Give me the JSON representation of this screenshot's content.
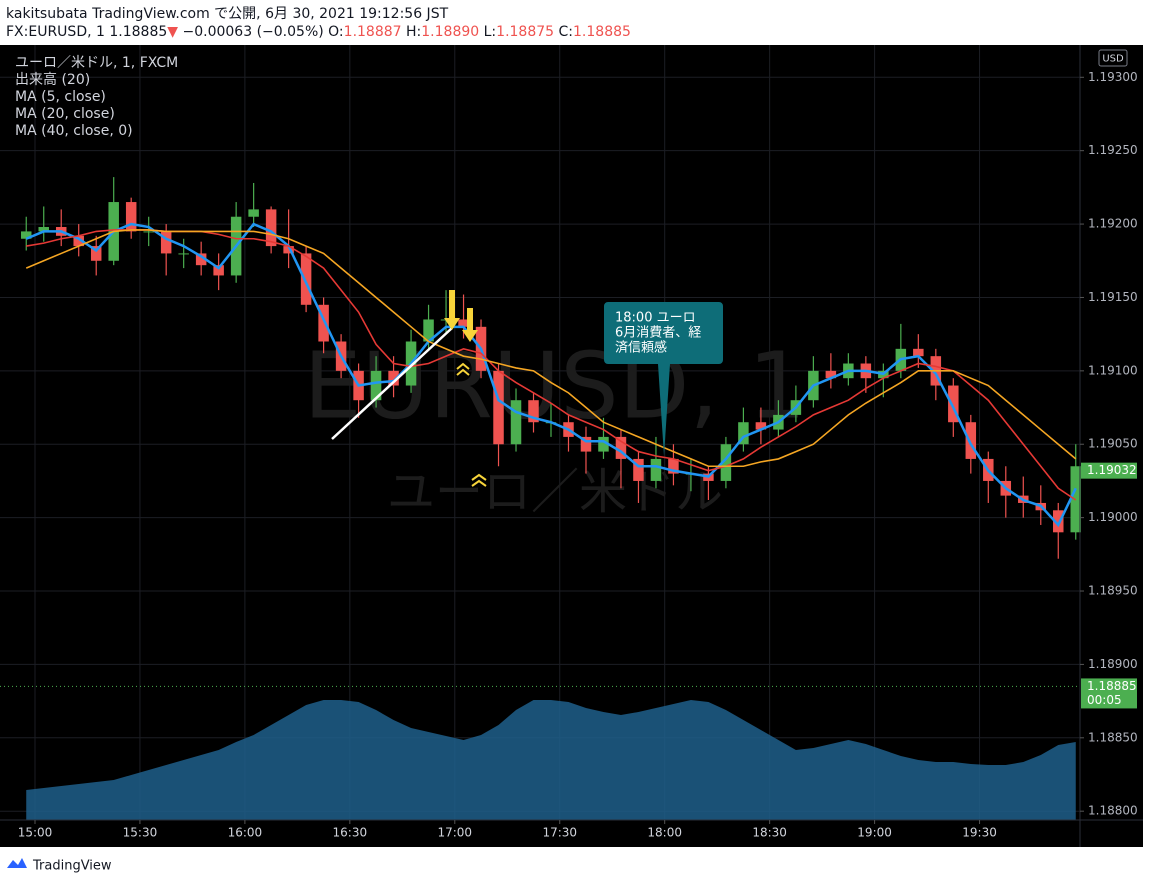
{
  "header": {
    "line1": "kakitsubata TradingView.com で公開, 6月 30, 2021 19:12:56 JST",
    "symbol": "FX:EURUSD, 1",
    "price": "1.18885",
    "arrow": "▼",
    "change": "−0.00063 (−0.05%)",
    "ohlc": [
      {
        "label": "O:",
        "value": "1.18887"
      },
      {
        "label": "H:",
        "value": "1.18890"
      },
      {
        "label": "L:",
        "value": "1.18875"
      },
      {
        "label": "C:",
        "value": "1.18885"
      }
    ]
  },
  "chart_data": {
    "type": "candlestick",
    "instrument": "ユーロ／米ドル, 1, FXCM",
    "watermark": [
      "EURUSD, 1",
      "ユーロ／米ドル"
    ],
    "currency": "USD",
    "up_color": "#4caf50",
    "down_color": "#ef5350",
    "categories": [
      "14:55",
      "15:00",
      "15:05",
      "15:10",
      "15:15",
      "15:20",
      "15:25",
      "15:30",
      "15:35",
      "15:40",
      "15:45",
      "15:50",
      "15:55",
      "16:00",
      "16:05",
      "16:10",
      "16:15",
      "16:20",
      "16:25",
      "16:30",
      "16:35",
      "16:40",
      "16:45",
      "16:50",
      "16:55",
      "17:00",
      "17:05",
      "17:10",
      "17:15",
      "17:20",
      "17:25",
      "17:30",
      "17:35",
      "17:40",
      "17:45",
      "17:50",
      "17:55",
      "18:00",
      "18:05",
      "18:10",
      "18:15",
      "18:20",
      "18:25",
      "18:30",
      "18:35",
      "18:40",
      "18:45",
      "18:50",
      "18:55",
      "19:00",
      "19:05",
      "19:10",
      "19:15",
      "19:20",
      "19:25",
      "19:30",
      "19:35",
      "19:40",
      "19:45",
      "19:50",
      "19:55"
    ],
    "open": [
      1.1919,
      1.19195,
      1.19198,
      1.19192,
      1.19185,
      1.19175,
      1.19215,
      1.19195,
      1.19195,
      1.1918,
      1.1918,
      1.19172,
      1.19165,
      1.19205,
      1.1921,
      1.19185,
      1.1918,
      1.19145,
      1.1912,
      1.191,
      1.1908,
      1.191,
      1.1909,
      1.1912,
      1.19135,
      1.19135,
      1.1913,
      1.191,
      1.1905,
      1.1908,
      1.19065,
      1.19065,
      1.19055,
      1.19045,
      1.19055,
      1.1904,
      1.19025,
      1.1904,
      1.1903,
      1.1903,
      1.19025,
      1.1905,
      1.19065,
      1.1906,
      1.1907,
      1.1908,
      1.191,
      1.19095,
      1.19105,
      1.19095,
      1.191,
      1.19115,
      1.1911,
      1.1909,
      1.19065,
      1.1904,
      1.19025,
      1.19015,
      1.1901,
      1.19005,
      1.1899
    ],
    "high": [
      1.19205,
      1.19212,
      1.1921,
      1.192,
      1.19192,
      1.19232,
      1.19218,
      1.19205,
      1.192,
      1.1919,
      1.19188,
      1.1918,
      1.19215,
      1.19228,
      1.19212,
      1.1921,
      1.19185,
      1.1915,
      1.19125,
      1.19105,
      1.1911,
      1.1911,
      1.19128,
      1.19145,
      1.19155,
      1.19152,
      1.19135,
      1.19105,
      1.19088,
      1.19085,
      1.19078,
      1.1907,
      1.19062,
      1.19068,
      1.1906,
      1.19045,
      1.19055,
      1.1905,
      1.1904,
      1.19035,
      1.19055,
      1.19075,
      1.19075,
      1.1908,
      1.1909,
      1.1911,
      1.19112,
      1.19112,
      1.1911,
      1.19105,
      1.19132,
      1.19125,
      1.19115,
      1.19095,
      1.1907,
      1.19045,
      1.19035,
      1.19028,
      1.19022,
      1.1901,
      1.1905
    ],
    "low": [
      1.19182,
      1.19188,
      1.19185,
      1.19178,
      1.19165,
      1.19172,
      1.1919,
      1.19185,
      1.19165,
      1.1917,
      1.19165,
      1.19155,
      1.1916,
      1.19198,
      1.1918,
      1.1917,
      1.1914,
      1.19112,
      1.19095,
      1.19068,
      1.19075,
      1.19082,
      1.19085,
      1.19115,
      1.19125,
      1.19122,
      1.19095,
      1.19035,
      1.19045,
      1.19058,
      1.19055,
      1.19045,
      1.1903,
      1.1904,
      1.1902,
      1.1901,
      1.1902,
      1.19022,
      1.19018,
      1.19012,
      1.1902,
      1.19045,
      1.1905,
      1.19055,
      1.19065,
      1.19075,
      1.19088,
      1.1909,
      1.19085,
      1.19082,
      1.19095,
      1.19102,
      1.1908,
      1.19055,
      1.1903,
      1.1901,
      1.19,
      1.19,
      1.18995,
      1.18972,
      1.18985
    ],
    "close": [
      1.19195,
      1.19198,
      1.19192,
      1.19185,
      1.19175,
      1.19215,
      1.19195,
      1.19195,
      1.1918,
      1.1918,
      1.19172,
      1.19165,
      1.19205,
      1.1921,
      1.19185,
      1.1918,
      1.19145,
      1.1912,
      1.191,
      1.1908,
      1.191,
      1.1909,
      1.1912,
      1.19135,
      1.19135,
      1.1913,
      1.191,
      1.1905,
      1.1908,
      1.19065,
      1.19065,
      1.19055,
      1.19045,
      1.19055,
      1.1904,
      1.19025,
      1.1904,
      1.1903,
      1.1903,
      1.19025,
      1.1905,
      1.19065,
      1.1906,
      1.1907,
      1.1908,
      1.191,
      1.19095,
      1.19105,
      1.19095,
      1.191,
      1.19115,
      1.1911,
      1.1909,
      1.19065,
      1.1904,
      1.19025,
      1.19015,
      1.1901,
      1.19005,
      1.1899,
      1.19035
    ],
    "series": [
      {
        "name": "MA (5, close)",
        "color": "#2196f3",
        "values": [
          1.1919,
          1.19195,
          1.19195,
          1.1919,
          1.19182,
          1.19195,
          1.192,
          1.19198,
          1.1919,
          1.19185,
          1.19178,
          1.1917,
          1.19185,
          1.192,
          1.19195,
          1.19185,
          1.1916,
          1.19135,
          1.1911,
          1.1909,
          1.19092,
          1.19093,
          1.19105,
          1.1912,
          1.1913,
          1.1913,
          1.19115,
          1.1908,
          1.19072,
          1.19068,
          1.19065,
          1.1906,
          1.19052,
          1.19052,
          1.19045,
          1.19035,
          1.19035,
          1.19032,
          1.1903,
          1.19028,
          1.1904,
          1.19055,
          1.1906,
          1.19065,
          1.19075,
          1.1909,
          1.19095,
          1.191,
          1.191,
          1.19098,
          1.19108,
          1.1911,
          1.19098,
          1.19075,
          1.1905,
          1.19032,
          1.1902,
          1.19012,
          1.19008,
          1.18995,
          1.1902
        ]
      },
      {
        "name": "MA (20, close)",
        "color": "#e53935",
        "values": [
          1.19185,
          1.19187,
          1.1919,
          1.19192,
          1.19195,
          1.19196,
          1.19196,
          1.19196,
          1.19195,
          1.19195,
          1.19195,
          1.19193,
          1.1919,
          1.1919,
          1.19188,
          1.19185,
          1.19178,
          1.1917,
          1.19155,
          1.1914,
          1.19118,
          1.19105,
          1.19103,
          1.19105,
          1.1911,
          1.19115,
          1.19112,
          1.191,
          1.19092,
          1.19085,
          1.19078,
          1.1907,
          1.19065,
          1.1906,
          1.19052,
          1.19045,
          1.19042,
          1.1904,
          1.19036,
          1.19032,
          1.19035,
          1.1904,
          1.19048,
          1.19055,
          1.19062,
          1.1907,
          1.19075,
          1.1908,
          1.19088,
          1.19095,
          1.191,
          1.19105,
          1.19103,
          1.191,
          1.1909,
          1.1908,
          1.19065,
          1.1905,
          1.19035,
          1.1902,
          1.19012
        ]
      },
      {
        "name": "MA (40, close, 0)",
        "color": "#f5a623",
        "values": [
          1.1917,
          1.19175,
          1.1918,
          1.19185,
          1.1919,
          1.19195,
          1.19196,
          1.19196,
          1.19195,
          1.19195,
          1.19195,
          1.19195,
          1.19195,
          1.19195,
          1.19193,
          1.1919,
          1.19185,
          1.1918,
          1.1917,
          1.1916,
          1.1915,
          1.1914,
          1.1913,
          1.1912,
          1.19115,
          1.1911,
          1.19108,
          1.19105,
          1.19102,
          1.191,
          1.19092,
          1.19085,
          1.19075,
          1.19065,
          1.1906,
          1.19055,
          1.1905,
          1.19045,
          1.1904,
          1.19035,
          1.19035,
          1.19035,
          1.19038,
          1.1904,
          1.19045,
          1.1905,
          1.1906,
          1.1907,
          1.19078,
          1.19085,
          1.19092,
          1.191,
          1.191,
          1.191,
          1.19095,
          1.1909,
          1.1908,
          1.1907,
          1.1906,
          1.1905,
          1.1904
        ]
      }
    ],
    "volume": {
      "name": "出来高 (20)",
      "color": "#1f5f8b",
      "values": [
        30,
        32,
        34,
        36,
        38,
        40,
        45,
        50,
        55,
        60,
        65,
        70,
        78,
        85,
        95,
        105,
        115,
        120,
        120,
        118,
        110,
        100,
        92,
        88,
        84,
        80,
        85,
        95,
        110,
        120,
        120,
        118,
        112,
        108,
        105,
        108,
        112,
        116,
        120,
        118,
        110,
        100,
        90,
        80,
        70,
        72,
        76,
        80,
        76,
        70,
        64,
        60,
        58,
        58,
        56,
        55,
        55,
        58,
        65,
        75,
        78
      ]
    },
    "vlim": [
      0,
      400
    ],
    "xlim": [
      "14:52",
      "19:59"
    ],
    "xticks": [
      "15:00",
      "15:30",
      "16:00",
      "16:30",
      "17:00",
      "17:30",
      "18:00",
      "18:30",
      "19:00",
      "19:30"
    ],
    "ylim": [
      1.18794,
      1.19322
    ],
    "yticks": [
      {
        "value": 1.193,
        "label": "1.19300"
      },
      {
        "value": 1.1925,
        "label": "1.19250"
      },
      {
        "value": 1.192,
        "label": "1.19200"
      },
      {
        "value": 1.1915,
        "label": "1.19150"
      },
      {
        "value": 1.191,
        "label": "1.19100"
      },
      {
        "value": 1.1905,
        "label": "1.19050"
      },
      {
        "value": 1.19,
        "label": "1.19000"
      },
      {
        "value": 1.1895,
        "label": "1.18950"
      },
      {
        "value": 1.189,
        "label": "1.18900"
      },
      {
        "value": 1.1885,
        "label": "1.18850"
      },
      {
        "value": 1.188,
        "label": "1.18800"
      }
    ],
    "grid": true,
    "ma_price": {
      "value": 1.19032,
      "label": "1.19032",
      "color": "#4caf50"
    },
    "last_price": {
      "value": 1.18885,
      "label": "1.18885",
      "color": "#4caf50"
    },
    "countdown": "00:05",
    "annotation": [
      "18:00 ユーロ",
      "6月消費者、経",
      "済信頼感"
    ]
  },
  "footer": {
    "brand": "TradingView"
  }
}
